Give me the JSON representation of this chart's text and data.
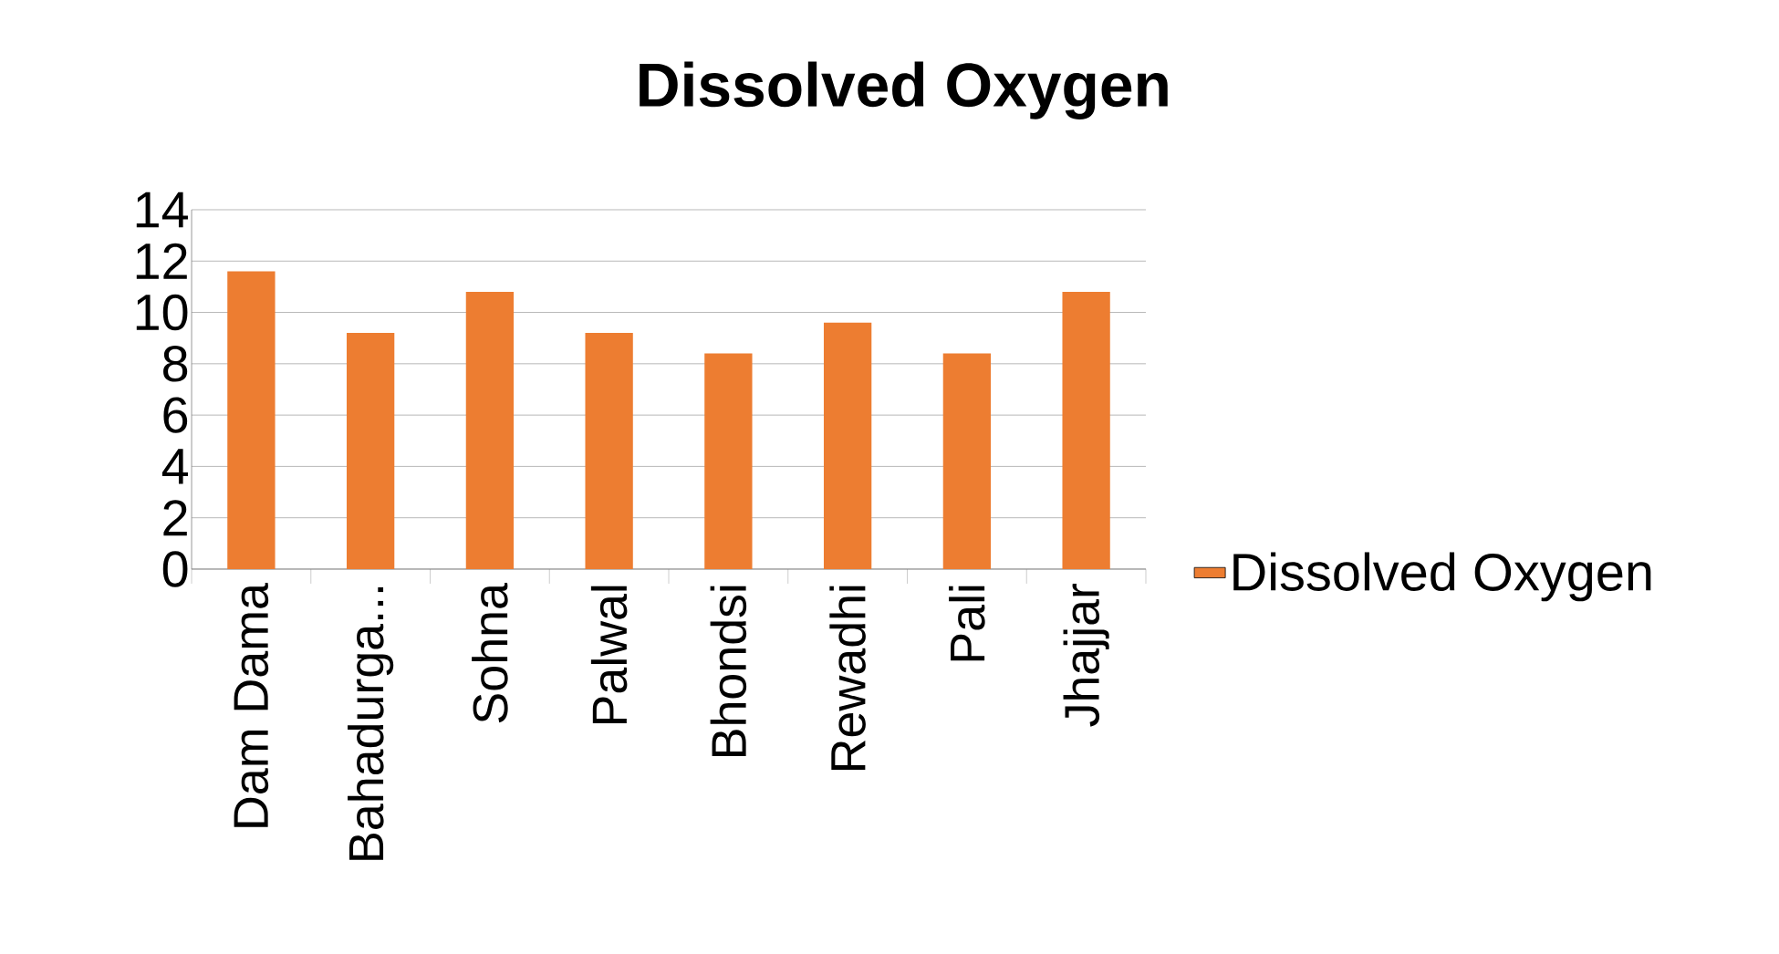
{
  "chart_data": {
    "type": "bar",
    "title": "Dissolved Oxygen",
    "categories": [
      "Dam Dama",
      "Bahadurga...",
      "Sohna",
      "Palwal",
      "Bhondsi",
      "Rewadhi",
      "Pali",
      "Jhajjar"
    ],
    "series": [
      {
        "name": "Dissolved Oxygen",
        "color": "#ed7d31",
        "values": [
          11.6,
          9.2,
          10.8,
          9.2,
          8.4,
          9.6,
          8.4,
          10.8
        ]
      }
    ],
    "ylim": [
      0,
      14
    ],
    "yticks": [
      0,
      2,
      4,
      6,
      8,
      10,
      12,
      14
    ],
    "grid": "y",
    "legend": "right"
  }
}
